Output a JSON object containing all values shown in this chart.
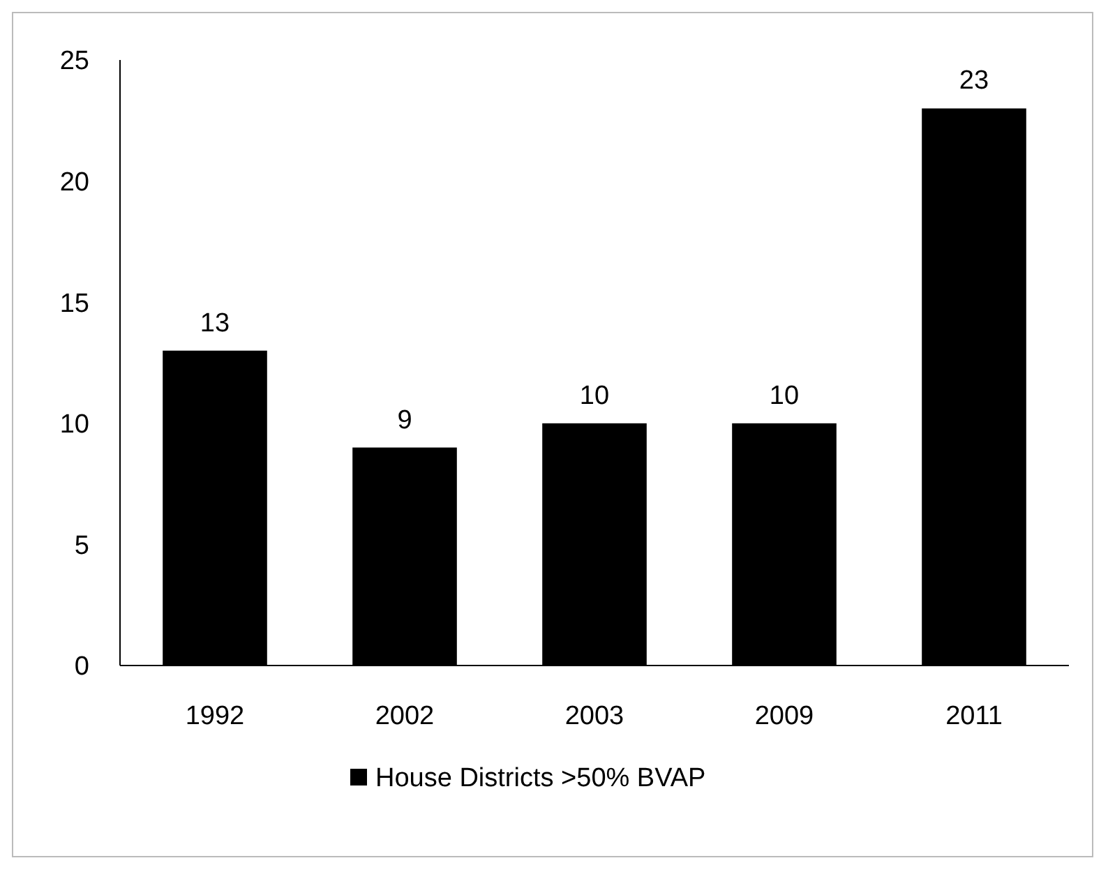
{
  "chart_data": {
    "type": "bar",
    "categories": [
      "1992",
      "2002",
      "2003",
      "2009",
      "2011"
    ],
    "series": [
      {
        "name": "House Districts >50% BVAP",
        "color": "#000000",
        "values": [
          13,
          9,
          10,
          10,
          23
        ]
      }
    ],
    "ylim": [
      0,
      25
    ],
    "yticks": [
      0,
      5,
      10,
      15,
      20,
      25
    ],
    "grid": false,
    "legend": "bottom",
    "data_labels": true
  }
}
